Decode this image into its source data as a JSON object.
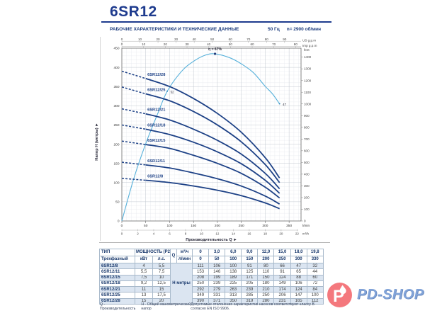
{
  "header": {
    "model": "6SR12",
    "subtitle": "РАБОЧИЕ ХАРАКТЕРИСТИКИ И ТЕХНИЧЕСКИЕ ДАННЫЕ",
    "frequency": "50 Гц",
    "speed": "n= 2900 об/мин"
  },
  "chart_data": {
    "type": "line",
    "xlabel": "Производительность Q ►",
    "ylabel": "Напор H (метры) ►",
    "xlim_lmin": [
      0,
      375
    ],
    "ylim_m": [
      0,
      450
    ],
    "x_units_bottom": [
      "l/min",
      "m³/h"
    ],
    "x_units_top": [
      "US g.p.m",
      "Imp g.p.m"
    ],
    "y_unit_right": "feet",
    "ticks": {
      "lmin": [
        0,
        50,
        100,
        150,
        200,
        250,
        300,
        350
      ],
      "m3h": [
        0,
        2,
        4,
        6,
        8,
        10,
        12,
        14,
        16,
        18,
        20,
        22
      ],
      "us_gpm": [
        0,
        10,
        20,
        30,
        40,
        50,
        60,
        70,
        80,
        90
      ],
      "imp_gpm": [
        0,
        10,
        20,
        30,
        40,
        50,
        60,
        70,
        80
      ],
      "head_m": [
        0,
        50,
        100,
        150,
        200,
        250,
        300,
        350,
        400,
        450
      ],
      "feet": [
        0,
        100,
        200,
        300,
        400,
        500,
        600,
        700,
        800,
        900,
        1000,
        1100,
        1200,
        1300,
        1400
      ]
    },
    "flow_lmin": [
      0,
      50,
      100,
      150,
      200,
      250,
      300,
      330
    ],
    "min_flow_solid_lmin": 50,
    "series": [
      {
        "name": "6SR12/28",
        "head_m": [
          390,
          371,
          350,
          319,
          280,
          231,
          165,
          112
        ]
      },
      {
        "name": "6SR12/25",
        "head_m": [
          349,
          331,
          313,
          285,
          250,
          206,
          147,
          100
        ]
      },
      {
        "name": "6SR12/21",
        "head_m": [
          292,
          279,
          263,
          239,
          210,
          174,
          124,
          84
        ]
      },
      {
        "name": "6SR12/18",
        "head_m": [
          250,
          239,
          225,
          205,
          180,
          149,
          106,
          72
        ]
      },
      {
        "name": "6SR12/15",
        "head_m": [
          208,
          199,
          189,
          171,
          150,
          124,
          88,
          60
        ]
      },
      {
        "name": "6SR12/11",
        "head_m": [
          153,
          146,
          138,
          125,
          110,
          91,
          65,
          44
        ]
      },
      {
        "name": "6SR12/8",
        "head_m": [
          111,
          106,
          100,
          91,
          80,
          66,
          47,
          32
        ]
      }
    ],
    "efficiency_curve": {
      "peak_label": "η = 67%",
      "peak": {
        "q": 195,
        "eta": 67
      },
      "points_q_eta": [
        [
          0,
          0
        ],
        [
          25,
          17
        ],
        [
          50,
          31
        ],
        [
          75,
          43
        ],
        [
          95,
          52
        ],
        [
          125,
          60
        ],
        [
          150,
          64
        ],
        [
          175,
          66.5
        ],
        [
          195,
          67
        ],
        [
          225,
          65.5
        ],
        [
          250,
          63
        ],
        [
          275,
          59.5
        ],
        [
          300,
          54
        ],
        [
          315,
          51
        ],
        [
          330,
          47
        ]
      ],
      "markers": [
        {
          "q": 95,
          "eta": 52,
          "label": "52"
        },
        {
          "q": 330,
          "eta": 47,
          "label": "47"
        }
      ]
    },
    "colors": {
      "curve": "#1d4186",
      "efficiency": "#56b0da",
      "grid_minor": "#e4e7ec",
      "grid_major": "#bcc3cd",
      "axis": "#555555",
      "tick_text": "#444444"
    }
  },
  "table": {
    "col1_header": [
      "ТИП",
      "Трехфазный"
    ],
    "power_header": "МОЩНОСТЬ (P2)",
    "power_units": [
      "кВт",
      "л.с."
    ],
    "q_label": "Q",
    "q_units": [
      "м³/ч",
      "л/мин"
    ],
    "h_label": "Н метры",
    "flow_m3h": [
      "0",
      "3,0",
      "6,0",
      "9,0",
      "12,0",
      "15,0",
      "18,0",
      "19,8"
    ],
    "flow_lmin": [
      "0",
      "50",
      "100",
      "150",
      "200",
      "250",
      "300",
      "330"
    ],
    "rows": [
      {
        "model": "6SR12/8",
        "kw": "4",
        "hp": "5,5",
        "head": [
          "111",
          "106",
          "100",
          "91",
          "80",
          "66",
          "47",
          "32"
        ]
      },
      {
        "model": "6SR12/11",
        "kw": "5,5",
        "hp": "7,5",
        "head": [
          "153",
          "146",
          "138",
          "125",
          "110",
          "91",
          "65",
          "44"
        ]
      },
      {
        "model": "6SR12/15",
        "kw": "7,5",
        "hp": "10",
        "head": [
          "208",
          "199",
          "189",
          "171",
          "150",
          "124",
          "88",
          "60"
        ]
      },
      {
        "model": "6SR12/18",
        "kw": "9,2",
        "hp": "12,5",
        "head": [
          "250",
          "239",
          "225",
          "205",
          "180",
          "149",
          "106",
          "72"
        ]
      },
      {
        "model": "6SR12/21",
        "kw": "11",
        "hp": "15",
        "head": [
          "292",
          "279",
          "263",
          "239",
          "210",
          "174",
          "124",
          "84"
        ]
      },
      {
        "model": "6SR12/25",
        "kw": "13",
        "hp": "17,5",
        "head": [
          "349",
          "331",
          "313",
          "285",
          "250",
          "206",
          "147",
          "100"
        ]
      },
      {
        "model": "6SR12/28",
        "kw": "15",
        "hp": "20",
        "head": [
          "390",
          "371",
          "350",
          "319",
          "280",
          "231",
          "165",
          "112"
        ]
      }
    ]
  },
  "footnotes": {
    "q": "Q - Производительность",
    "h": "Н - Общий манометрический напор",
    "right": "Допустимые отклонения характеристик насосов соответствуют классу B согласно EN ISO 9906."
  },
  "logo": {
    "text": "PD-SHOP",
    "mark_letter": "P",
    "circle_color": "#f4787d",
    "text_color": "#81a3d8"
  }
}
